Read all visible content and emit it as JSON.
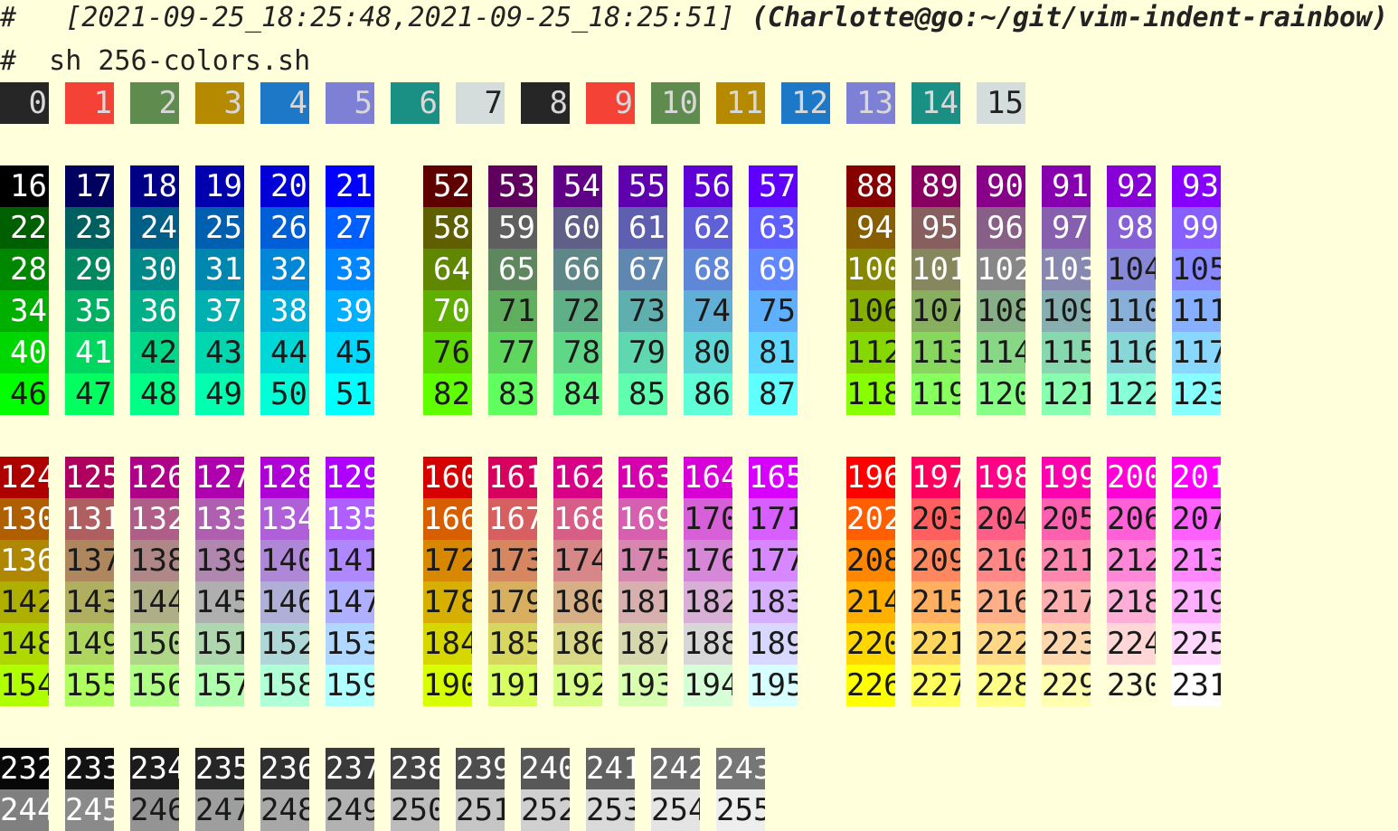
{
  "terminal": {
    "header": {
      "prompt_symbol": "#",
      "timestamps": "   [2021-09-25_18:25:48,2021-09-25_18:25:51] ",
      "context": "(Charlotte@go:~/git/vim-indent-rainbow)"
    },
    "command": {
      "prompt_symbol": "#",
      "text": "  sh 256-colors.sh"
    },
    "palette": {
      "base16": [
        "#262626",
        "#f44336",
        "#608b4e",
        "#b58900",
        "#1e78c8",
        "#7e80d6",
        "#1a9085",
        "#d5dcdc",
        "#262626",
        "#f44336",
        "#608b4e",
        "#b58900",
        "#1e78c8",
        "#7e80d6",
        "#1a9085",
        "#d5dcdc"
      ],
      "levels": [
        0,
        95,
        135,
        175,
        215,
        255
      ]
    }
  }
}
